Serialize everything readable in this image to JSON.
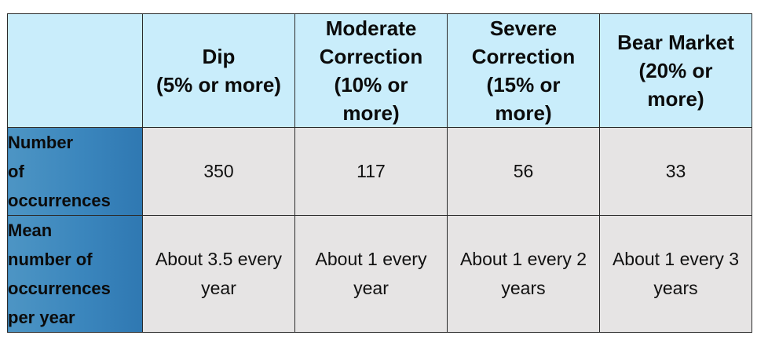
{
  "columns": [
    {
      "lines": [
        "Dip",
        "(5% or more)"
      ]
    },
    {
      "lines": [
        "Moderate",
        "Correction",
        "(10% or",
        "more)"
      ]
    },
    {
      "lines": [
        "Severe",
        "Correction",
        "(15% or",
        "more)"
      ]
    },
    {
      "lines": [
        "Bear Market",
        "(20% or",
        "more)"
      ]
    }
  ],
  "rows": [
    {
      "label_lines": [
        "Number",
        "of",
        "occurrences"
      ],
      "cells": [
        {
          "lines": [
            "350"
          ]
        },
        {
          "lines": [
            "117"
          ]
        },
        {
          "lines": [
            "56"
          ]
        },
        {
          "lines": [
            "33"
          ]
        }
      ]
    },
    {
      "label_lines": [
        "Mean",
        "number of",
        "occurrences",
        "per year"
      ],
      "cells": [
        {
          "lines": [
            "About 3.5 every",
            "year"
          ]
        },
        {
          "lines": [
            "About 1 every",
            "year"
          ]
        },
        {
          "lines": [
            "About 1 every 2",
            "years"
          ]
        },
        {
          "lines": [
            "About 1 every 3",
            "years"
          ]
        }
      ]
    }
  ],
  "colors": {
    "header_bg": "#c9edfb",
    "row_label_bg": "#3b86bd",
    "cell_bg": "#e6e4e4",
    "border": "#2b2b2b"
  }
}
